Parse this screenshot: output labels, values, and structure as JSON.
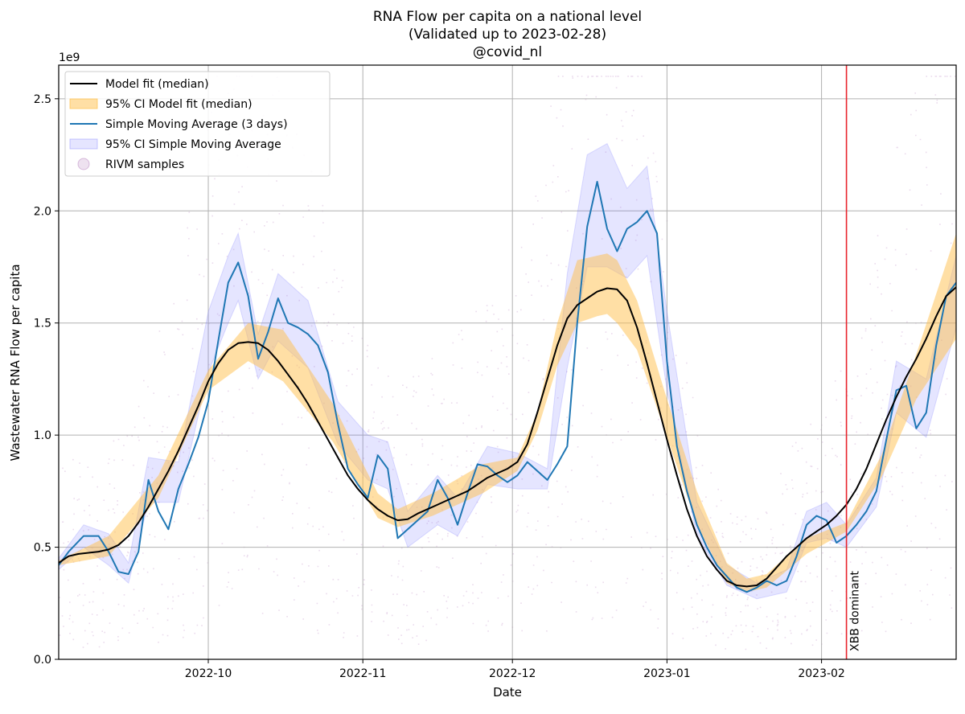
{
  "chart_data": {
    "type": "line",
    "title": "RNA Flow per capita on a national level",
    "subtitle": "(Validated up to 2023-02-28)",
    "handle": "@covid_nl",
    "xlabel": "Date",
    "ylabel": "Wastewater RNA Flow per capita",
    "y_offset_label": "1e9",
    "x_start": "2022-09-01",
    "x_end": "2023-02-28",
    "xlim_days": [
      0,
      180
    ],
    "ylim": [
      0,
      2.65
    ],
    "grid": true,
    "legend_position": "top-left",
    "x_ticks": [
      {
        "label": "2022-10",
        "day": 30
      },
      {
        "label": "2022-11",
        "day": 61
      },
      {
        "label": "2022-12",
        "day": 91
      },
      {
        "label": "2023-01",
        "day": 122
      },
      {
        "label": "2023-02",
        "day": 153
      }
    ],
    "y_ticks": [
      {
        "label": "0.0",
        "value": 0
      },
      {
        "label": "0.5",
        "value": 0.5
      },
      {
        "label": "1.0",
        "value": 1.0
      },
      {
        "label": "1.5",
        "value": 1.5
      },
      {
        "label": "2.0",
        "value": 2.0
      },
      {
        "label": "2.5",
        "value": 2.5
      }
    ],
    "annotation": {
      "label": "XBB dominant",
      "day": 158,
      "color": "#e8242c"
    },
    "colors": {
      "model": "#000000",
      "model_ci": "#ffc04c",
      "sma": "#1f77b4",
      "sma_ci": "#7b7bff",
      "samples": "#8e3a9b",
      "grid": "#b0b0b0"
    },
    "legend": [
      {
        "label": "Model fit (median)",
        "kind": "line",
        "color": "#000000"
      },
      {
        "label": "95% CI Model fit (median)",
        "kind": "patch",
        "color": "#ffc04c"
      },
      {
        "label": "Simple Moving Average (3 days)",
        "kind": "line",
        "color": "#1f77b4"
      },
      {
        "label": "95% CI Simple Moving Average",
        "kind": "patch",
        "color": "#7b7bff"
      },
      {
        "label": "RIVM samples",
        "kind": "circle",
        "color": "#8e3a9b"
      }
    ],
    "series": [
      {
        "name": "Model fit (median)",
        "x": [
          0,
          2,
          4,
          6,
          8,
          10,
          12,
          14,
          16,
          18,
          20,
          22,
          24,
          26,
          28,
          30,
          32,
          34,
          36,
          38,
          40,
          42,
          44,
          46,
          48,
          50,
          52,
          54,
          56,
          58,
          60,
          62,
          64,
          66,
          68,
          70,
          72,
          74,
          76,
          78,
          80,
          82,
          84,
          86,
          88,
          90,
          92,
          94,
          96,
          98,
          100,
          102,
          104,
          106,
          108,
          110,
          112,
          114,
          116,
          118,
          120,
          122,
          124,
          126,
          128,
          130,
          132,
          134,
          136,
          138,
          140,
          142,
          144,
          146,
          148,
          150,
          152,
          154,
          156,
          158,
          160,
          162,
          164,
          166,
          168,
          170,
          172,
          174,
          176,
          178,
          180
        ],
        "values": [
          0.43,
          0.46,
          0.47,
          0.475,
          0.48,
          0.49,
          0.51,
          0.55,
          0.61,
          0.68,
          0.76,
          0.84,
          0.93,
          1.03,
          1.13,
          1.24,
          1.32,
          1.38,
          1.41,
          1.415,
          1.41,
          1.38,
          1.33,
          1.27,
          1.21,
          1.14,
          1.06,
          0.98,
          0.9,
          0.82,
          0.76,
          0.71,
          0.67,
          0.64,
          0.62,
          0.625,
          0.65,
          0.67,
          0.69,
          0.71,
          0.73,
          0.75,
          0.78,
          0.81,
          0.83,
          0.85,
          0.88,
          0.96,
          1.1,
          1.25,
          1.4,
          1.52,
          1.58,
          1.61,
          1.64,
          1.655,
          1.65,
          1.6,
          1.48,
          1.32,
          1.15,
          0.98,
          0.82,
          0.67,
          0.55,
          0.46,
          0.4,
          0.35,
          0.33,
          0.325,
          0.33,
          0.36,
          0.41,
          0.46,
          0.5,
          0.54,
          0.57,
          0.6,
          0.64,
          0.69,
          0.76,
          0.85,
          0.96,
          1.07,
          1.17,
          1.26,
          1.34,
          1.43,
          1.53,
          1.62,
          1.66
        ]
      },
      {
        "name": "95% CI Model fit (median)",
        "x": [
          0,
          10,
          20,
          30,
          38,
          45,
          55,
          64,
          68,
          75,
          85,
          92,
          96,
          100,
          104,
          108,
          110,
          112,
          116,
          122,
          128,
          134,
          138,
          142,
          150,
          158,
          165,
          172,
          180
        ],
        "values": [
          0.42,
          0.46,
          0.72,
          1.2,
          1.33,
          1.24,
          0.97,
          0.63,
          0.59,
          0.64,
          0.74,
          0.84,
          1.02,
          1.31,
          1.5,
          1.53,
          1.54,
          1.5,
          1.38,
          0.99,
          0.6,
          0.34,
          0.3,
          0.32,
          0.47,
          0.57,
          0.81,
          1.16,
          1.43
        ],
        "values_upper": [
          0.44,
          0.55,
          0.82,
          1.29,
          1.5,
          1.47,
          1.14,
          0.74,
          0.67,
          0.74,
          0.87,
          0.9,
          1.1,
          1.5,
          1.78,
          1.8,
          1.81,
          1.78,
          1.6,
          1.16,
          0.75,
          0.43,
          0.36,
          0.38,
          0.54,
          0.61,
          0.91,
          1.36,
          1.9
        ]
      },
      {
        "name": "Simple Moving Average (3 days)",
        "x": [
          0,
          2,
          5,
          8,
          10,
          12,
          14,
          16,
          18,
          20,
          22,
          24,
          26,
          28,
          30,
          32,
          34,
          36,
          38,
          40,
          42,
          44,
          46,
          48,
          50,
          52,
          54,
          56,
          58,
          60,
          62,
          64,
          66,
          68,
          70,
          72,
          74,
          76,
          78,
          80,
          82,
          84,
          86,
          88,
          90,
          92,
          94,
          96,
          98,
          100,
          102,
          104,
          106,
          108,
          110,
          112,
          114,
          116,
          118,
          120,
          122,
          124,
          126,
          128,
          130,
          132,
          134,
          136,
          138,
          140,
          142,
          144,
          146,
          148,
          150,
          152,
          154,
          156,
          158,
          160,
          162,
          164,
          166,
          168,
          170,
          172,
          174,
          176,
          178,
          180
        ],
        "values": [
          0.42,
          0.48,
          0.55,
          0.55,
          0.48,
          0.39,
          0.38,
          0.48,
          0.8,
          0.66,
          0.58,
          0.76,
          0.87,
          0.99,
          1.15,
          1.42,
          1.68,
          1.77,
          1.62,
          1.34,
          1.46,
          1.61,
          1.5,
          1.48,
          1.45,
          1.4,
          1.28,
          1.05,
          0.85,
          0.78,
          0.72,
          0.91,
          0.85,
          0.54,
          0.58,
          0.62,
          0.66,
          0.8,
          0.72,
          0.6,
          0.74,
          0.87,
          0.86,
          0.82,
          0.79,
          0.82,
          0.88,
          0.84,
          0.8,
          0.87,
          0.95,
          1.5,
          1.93,
          2.13,
          1.92,
          1.82,
          1.92,
          1.95,
          2.0,
          1.9,
          1.33,
          0.95,
          0.75,
          0.6,
          0.5,
          0.42,
          0.37,
          0.32,
          0.3,
          0.32,
          0.35,
          0.33,
          0.35,
          0.46,
          0.6,
          0.64,
          0.62,
          0.52,
          0.55,
          0.6,
          0.66,
          0.75,
          0.98,
          1.2,
          1.22,
          1.03,
          1.1,
          1.4,
          1.62,
          1.68
        ]
      },
      {
        "name": "95% CI Simple Moving Average",
        "x": [
          0,
          5,
          10,
          14,
          18,
          24,
          30,
          34,
          36,
          40,
          44,
          50,
          56,
          62,
          66,
          70,
          76,
          80,
          86,
          92,
          98,
          102,
          106,
          110,
          114,
          118,
          122,
          128,
          134,
          140,
          146,
          150,
          154,
          158,
          164,
          168,
          174,
          180
        ],
        "values": [
          0.4,
          0.5,
          0.42,
          0.34,
          0.7,
          0.7,
          1.28,
          1.5,
          1.6,
          1.25,
          1.42,
          1.3,
          0.96,
          0.8,
          0.76,
          0.5,
          0.6,
          0.55,
          0.78,
          0.76,
          0.76,
          1.3,
          1.75,
          1.75,
          1.7,
          1.8,
          1.2,
          0.55,
          0.33,
          0.27,
          0.3,
          0.52,
          0.54,
          0.5,
          0.68,
          1.1,
          0.99,
          1.48
        ],
        "values_upper": [
          0.45,
          0.6,
          0.56,
          0.43,
          0.9,
          0.88,
          1.55,
          1.8,
          1.9,
          1.45,
          1.72,
          1.6,
          1.15,
          1.0,
          0.97,
          0.66,
          0.82,
          0.72,
          0.95,
          0.92,
          0.85,
          1.72,
          2.25,
          2.3,
          2.1,
          2.2,
          1.55,
          0.7,
          0.42,
          0.34,
          0.4,
          0.66,
          0.7,
          0.6,
          0.81,
          1.33,
          1.25,
          1.8
        ]
      }
    ]
  }
}
